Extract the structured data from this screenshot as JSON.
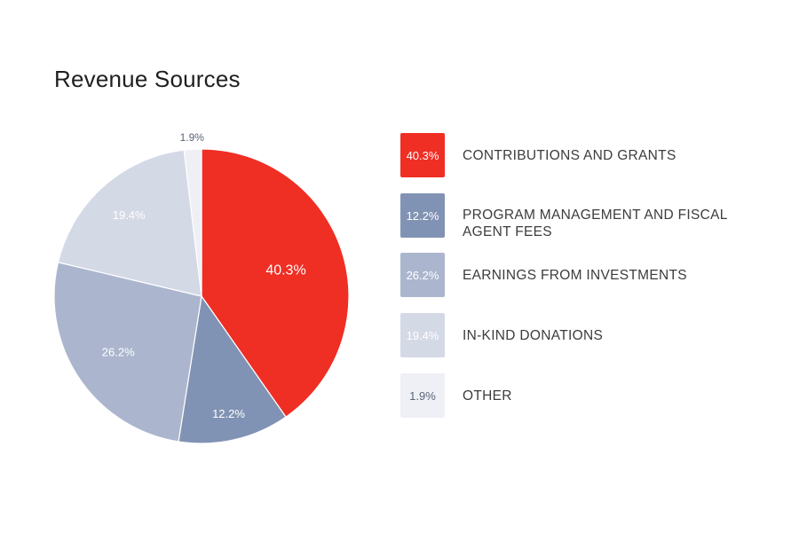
{
  "title": "Revenue Sources",
  "chart_data": {
    "type": "pie",
    "title": "Revenue Sources",
    "slices": [
      {
        "label": "CONTRIBUTIONS AND GRANTS",
        "value": 40.3,
        "display": "40.3%",
        "color": "#ef2e24",
        "text_color": "#ffffff"
      },
      {
        "label": "PROGRAM MANAGEMENT AND FISCAL AGENT FEES",
        "value": 12.2,
        "display": "12.2%",
        "color": "#8193b4",
        "text_color": "#ffffff"
      },
      {
        "label": "EARNINGS FROM INVESTMENTS",
        "value": 26.2,
        "display": "26.2%",
        "color": "#abb6ce",
        "text_color": "#ffffff"
      },
      {
        "label": "IN-KIND DONATIONS",
        "value": 19.4,
        "display": "19.4%",
        "color": "#d4d9e6",
        "text_color": "#ffffff"
      },
      {
        "label": "OTHER",
        "value": 1.9,
        "display": "1.9%",
        "color": "#eef0f5",
        "text_color": "#5b6478"
      }
    ],
    "legend_position": "right"
  }
}
